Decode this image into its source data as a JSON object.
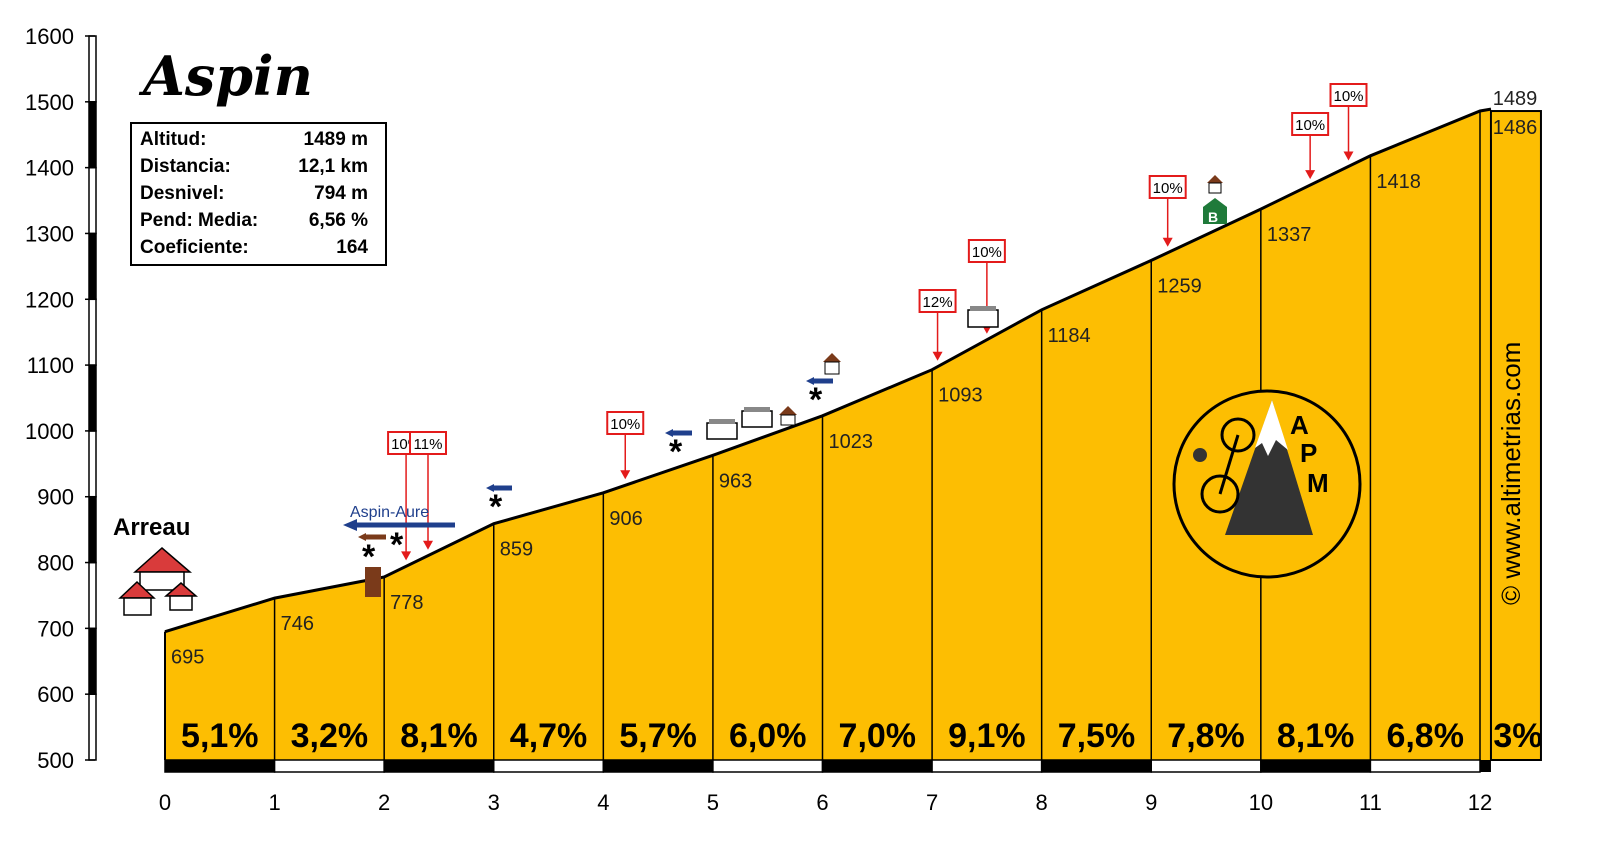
{
  "chart_data": {
    "type": "area",
    "title": "Aspin",
    "start_label": "Arreau",
    "summary": [
      {
        "label": "Altitud:",
        "value": "1489 m"
      },
      {
        "label": "Distancia:",
        "value": "12,1 km"
      },
      {
        "label": "Desnivel:",
        "value": "794 m"
      },
      {
        "label": "Pend: Media:",
        "value": "6,56 %"
      },
      {
        "label": "Coeficiente:",
        "value": "164"
      }
    ],
    "ylim": [
      500,
      1600
    ],
    "xlim": [
      0,
      12.1
    ],
    "y_ticks": [
      "500",
      "600",
      "700",
      "800",
      "900",
      "1000",
      "1100",
      "1200",
      "1300",
      "1400",
      "1500",
      "1600"
    ],
    "x_ticks": [
      "0",
      "1",
      "2",
      "3",
      "4",
      "5",
      "6",
      "7",
      "8",
      "9",
      "10",
      "11",
      "12"
    ],
    "points": [
      {
        "km": 0,
        "alt": 695,
        "label": "695"
      },
      {
        "km": 1,
        "alt": 746,
        "label": "746"
      },
      {
        "km": 2,
        "alt": 778,
        "label": "778"
      },
      {
        "km": 3,
        "alt": 859,
        "label": "859"
      },
      {
        "km": 4,
        "alt": 906,
        "label": "906"
      },
      {
        "km": 5,
        "alt": 963,
        "label": "963"
      },
      {
        "km": 6,
        "alt": 1023,
        "label": "1023"
      },
      {
        "km": 7,
        "alt": 1093,
        "label": "1093"
      },
      {
        "km": 8,
        "alt": 1184,
        "label": "1184"
      },
      {
        "km": 9,
        "alt": 1259,
        "label": "1259"
      },
      {
        "km": 10,
        "alt": 1337,
        "label": "1337"
      },
      {
        "km": 11,
        "alt": 1418,
        "label": "1418"
      },
      {
        "km": 12,
        "alt": 1486,
        "label": "1486"
      },
      {
        "km": 12.1,
        "alt": 1489,
        "label": "1489"
      }
    ],
    "gradients": [
      "5,1%",
      "3,2%",
      "8,1%",
      "4,7%",
      "5,7%",
      "6,0%",
      "7,0%",
      "9,1%",
      "7,5%",
      "7,8%",
      "8,1%",
      "6,8%",
      "3%"
    ],
    "steep_markers": [
      {
        "km": 2.2,
        "label": "10%"
      },
      {
        "km": 2.4,
        "label": "11%"
      },
      {
        "km": 4.2,
        "label": "10%"
      },
      {
        "km": 7.05,
        "label": "12%"
      },
      {
        "km": 7.5,
        "label": "10%"
      },
      {
        "km": 9.15,
        "label": "10%"
      },
      {
        "km": 10.45,
        "label": "10%"
      },
      {
        "km": 10.8,
        "label": "10%"
      }
    ],
    "junction_label": "Aspin-Aure",
    "watermark": "© www.altimetrias.com",
    "logo_text": "APM",
    "fill_color": "#fdbe02",
    "marker_color": "#e31b1b"
  }
}
